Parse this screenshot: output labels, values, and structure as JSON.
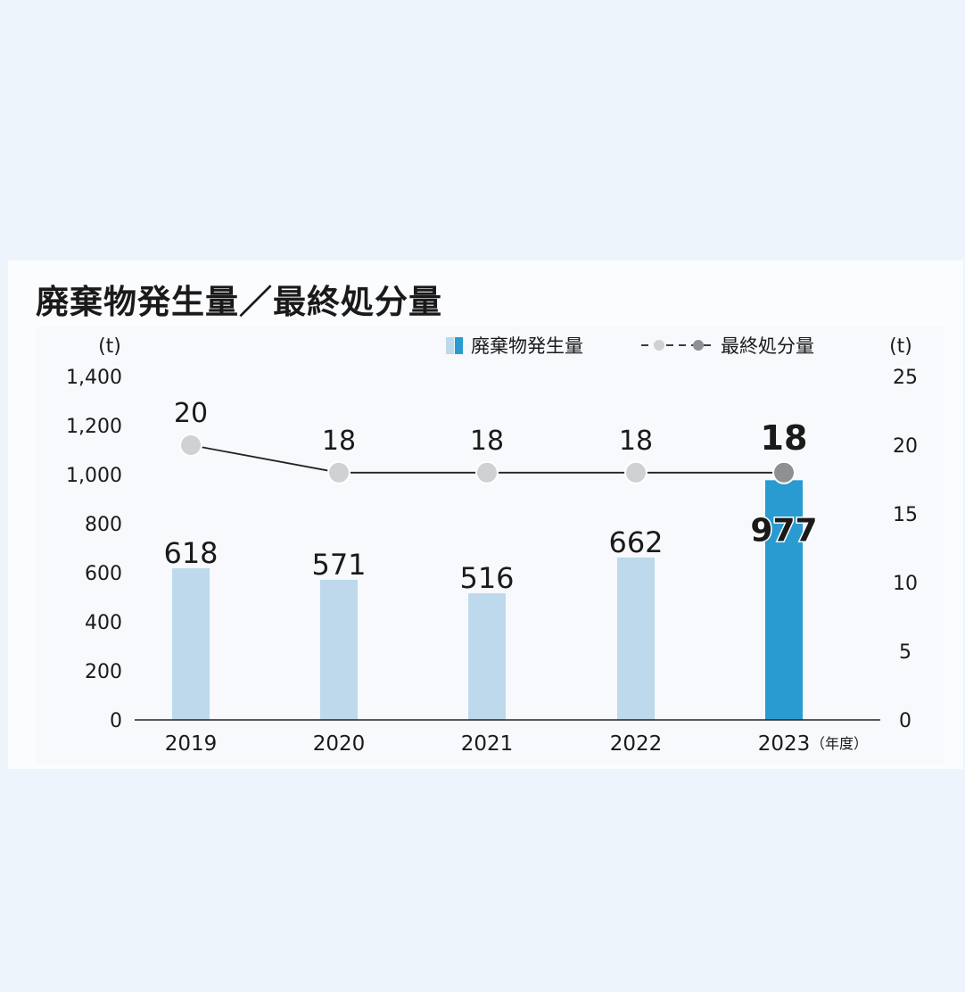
{
  "title": "廃棄物発生量／最終処分量",
  "colors": {
    "bar_past": "#bdd9eb",
    "bar_latest": "#2a9bd0",
    "point_past": "#cfd1d3",
    "point_latest": "#8e9093",
    "line": "#222222",
    "axis": "#222222",
    "text": "#1a1a1a"
  },
  "chart_data": {
    "type": "bar+line",
    "categories": [
      "2019",
      "2020",
      "2021",
      "2022",
      "2023"
    ],
    "xlabel_unit": "（年度）",
    "left_axis": {
      "unit": "(t)",
      "range": [
        0,
        1400
      ],
      "ticks": [
        0,
        200,
        400,
        600,
        800,
        1000,
        1200,
        1400
      ],
      "tick_labels": [
        "0",
        "200",
        "400",
        "600",
        "800",
        "1,000",
        "1,200",
        "1,400"
      ]
    },
    "right_axis": {
      "unit": "(t)",
      "range": [
        0,
        25
      ],
      "ticks": [
        0,
        5,
        10,
        15,
        20,
        25
      ],
      "tick_labels": [
        "0",
        "5",
        "10",
        "15",
        "20",
        "25"
      ]
    },
    "series": [
      {
        "name": "廃棄物発生量",
        "type": "bar",
        "axis": "left",
        "values": [
          618,
          571,
          516,
          662,
          977
        ],
        "labels": [
          "618",
          "571",
          "516",
          "662",
          "977"
        ]
      },
      {
        "name": "最終処分量",
        "type": "line",
        "axis": "right",
        "values": [
          20,
          18,
          18,
          18,
          18
        ],
        "labels": [
          "20",
          "18",
          "18",
          "18",
          "18"
        ]
      }
    ],
    "highlight_index": 4,
    "legend_position": "top"
  }
}
